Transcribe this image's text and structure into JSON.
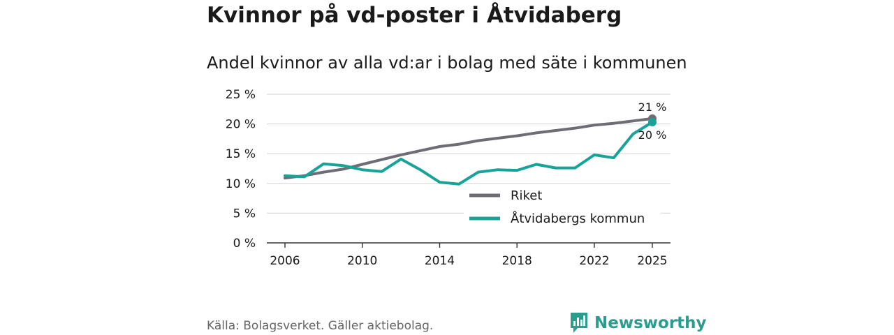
{
  "header": {
    "title": "Kvinnor på vd-poster i Åtvidaberg",
    "subtitle": "Andel kvinnor av alla vd:ar i bolag med säte i kommunen"
  },
  "chart_data": {
    "type": "line",
    "title": "Kvinnor på vd-poster i Åtvidaberg",
    "subtitle": "Andel kvinnor av alla vd:ar i bolag med säte i kommunen",
    "xlabel": "",
    "ylabel": "",
    "x": [
      2006,
      2007,
      2008,
      2009,
      2010,
      2011,
      2012,
      2013,
      2014,
      2015,
      2016,
      2017,
      2018,
      2019,
      2020,
      2021,
      2022,
      2023,
      2024,
      2025
    ],
    "xticks": [
      2006,
      2010,
      2014,
      2018,
      2022,
      2025
    ],
    "ylim": [
      0,
      25
    ],
    "yticks": [
      0,
      5,
      10,
      15,
      20,
      25
    ],
    "ytick_labels": [
      "0 %",
      "5 %",
      "10 %",
      "15 %",
      "20 %",
      "25 %"
    ],
    "grid": true,
    "legend_position": "bottom-right",
    "series": [
      {
        "name": "Riket",
        "color": "#6e6c75",
        "values": [
          10.9,
          11.3,
          11.9,
          12.4,
          13.2,
          14.0,
          14.8,
          15.5,
          16.2,
          16.6,
          17.2,
          17.6,
          18.0,
          18.5,
          18.9,
          19.3,
          19.8,
          20.1,
          20.5,
          20.9
        ],
        "end_label": "21 %"
      },
      {
        "name": "Åtvidabergs kommun",
        "color": "#17a398",
        "values": [
          11.3,
          11.1,
          13.3,
          13.0,
          12.3,
          12.0,
          14.1,
          12.3,
          10.2,
          9.9,
          11.9,
          12.3,
          12.2,
          13.2,
          12.6,
          12.6,
          14.8,
          14.3,
          18.3,
          20.3
        ],
        "end_label": "20 %"
      }
    ]
  },
  "footer": {
    "source": "Källa: Bolagsverket. Gäller aktiebolag.",
    "brand": "Newsworthy"
  },
  "colors": {
    "grid": "#d9d9d9",
    "axis": "#333333",
    "brand": "#2a9d8f"
  }
}
